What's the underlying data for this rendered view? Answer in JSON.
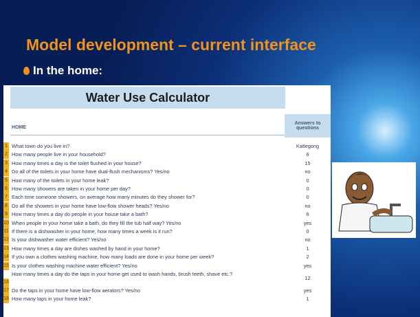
{
  "header": {
    "title": "Model development – current interface",
    "bullet": "In the home:"
  },
  "sheet": {
    "title": "Water Use Calculator",
    "section": "HOME",
    "answers_header": "Answers to questions",
    "rows": [
      [
        1,
        "What town do you live in?",
        "Katlegong"
      ],
      [
        2,
        "How many people live in your household?",
        6
      ],
      [
        3,
        "How many times a day is the toilet flushed in your house?",
        15
      ],
      [
        4,
        "Do all of the toilets in your home  have dual-flush mechanisms? Yes/no",
        "no"
      ],
      [
        5,
        "How many of the toilets in your home leak?",
        0
      ],
      [
        6,
        "How many showers are taken in your home per day?",
        0
      ],
      [
        7,
        "Each time someone showers, on average how many minutes do they shower for?",
        0
      ],
      [
        8,
        "Do all the showers in your home have low-flow shower heads? Yes/no",
        "no"
      ],
      [
        9,
        "How many times a day do people in your house take a bath?",
        6
      ],
      [
        10,
        "When people in your home take a bath, do they fill the tub half way? Yes/no",
        "yes"
      ],
      [
        11,
        "If there is a dishwasher in your home, how many times a week is it run?",
        0
      ],
      [
        12,
        "Is your dishwasher water efficient? Yes/no",
        "no"
      ],
      [
        13,
        "How many times a day are dishes washed by hand in your home?",
        1
      ],
      [
        14,
        "If you own a clothes washing machine, how many loads are done in your home per week?",
        2
      ],
      [
        15,
        "Is your clothes washing machine water efficient? Yes/no",
        "yes"
      ],
      [
        16,
        "How many times a day do the taps in your home get used to wash hands, brush teeth, shave etc.?",
        12
      ],
      [
        17,
        "Do the taps in your home have low-flow aerators? Yes/no",
        "yes"
      ],
      [
        18,
        "How many taps in your home leak?",
        1
      ]
    ]
  }
}
